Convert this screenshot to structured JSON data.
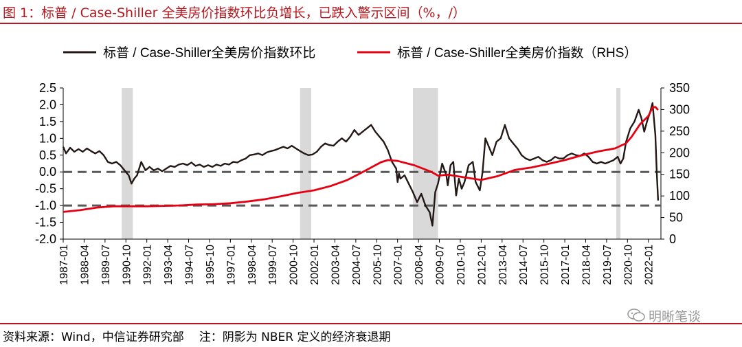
{
  "title": "图 1：标普 / Case-Shiller 全美房价指数环比负增长，已跌入警示区间（%，/）",
  "source": "资料来源：Wind，中信证券研究部",
  "note": "注：阴影为 NBER 定义的经济衰退期",
  "watermark": "明晰笔谈",
  "chart_data": {
    "type": "line",
    "legend_position": "top",
    "legend": [
      {
        "name": "标普 / Case-Shiller全美房价指数环比",
        "color": "#231815"
      },
      {
        "name": "标普 / Case-Shiller全美房价指数（RHS）",
        "color": "#e60012"
      }
    ],
    "x_tick_labels": [
      "1987-01",
      "1988-04",
      "1989-07",
      "1990-10",
      "1992-01",
      "1993-04",
      "1994-07",
      "1995-10",
      "1997-01",
      "1998-04",
      "1999-07",
      "2000-10",
      "2002-01",
      "2003-04",
      "2004-07",
      "2005-10",
      "2007-01",
      "2008-04",
      "2009-07",
      "2010-10",
      "2012-01",
      "2013-04",
      "2014-07",
      "2015-10",
      "2017-01",
      "2018-04",
      "2019-07",
      "2020-10",
      "2022-01"
    ],
    "y_left": {
      "ticks": [
        "2.5",
        "2.0",
        "1.5",
        "1.0",
        "0.5",
        "0.0",
        "-0.5",
        "-1.0",
        "-1.5",
        "-2.0"
      ],
      "range": [
        -2.0,
        2.5
      ]
    },
    "y_right": {
      "label": "RHS",
      "ticks": [
        "350",
        "300",
        "250",
        "200",
        "150",
        "100",
        "50",
        "0"
      ],
      "range": [
        0,
        350
      ]
    },
    "reference_lines": [
      0.0,
      -1.0
    ],
    "recessions": [
      {
        "start": "1990-07",
        "end": "1991-03"
      },
      {
        "start": "2001-03",
        "end": "2001-11"
      },
      {
        "start": "2007-12",
        "end": "2009-06"
      },
      {
        "start": "2020-02",
        "end": "2020-04"
      }
    ],
    "series": [
      {
        "name": "标普 / Case-Shiller全美房价指数环比",
        "axis": "left",
        "points": [
          [
            "1987-01",
            0.75
          ],
          [
            "1987-03",
            0.55
          ],
          [
            "1987-06",
            0.72
          ],
          [
            "1987-09",
            0.6
          ],
          [
            "1987-12",
            0.68
          ],
          [
            "1988-03",
            0.6
          ],
          [
            "1988-06",
            0.7
          ],
          [
            "1988-09",
            0.62
          ],
          [
            "1988-12",
            0.55
          ],
          [
            "1989-03",
            0.62
          ],
          [
            "1989-06",
            0.5
          ],
          [
            "1989-09",
            0.3
          ],
          [
            "1989-12",
            0.25
          ],
          [
            "1990-03",
            0.3
          ],
          [
            "1990-06",
            0.2
          ],
          [
            "1990-09",
            0.05
          ],
          [
            "1990-12",
            -0.1
          ],
          [
            "1991-02",
            -0.35
          ],
          [
            "1991-04",
            -0.2
          ],
          [
            "1991-06",
            -0.1
          ],
          [
            "1991-09",
            0.3
          ],
          [
            "1991-12",
            0.05
          ],
          [
            "1992-03",
            0.15
          ],
          [
            "1992-06",
            0.05
          ],
          [
            "1992-09",
            0.1
          ],
          [
            "1992-12",
            0.02
          ],
          [
            "1993-03",
            0.1
          ],
          [
            "1993-06",
            0.18
          ],
          [
            "1993-09",
            0.15
          ],
          [
            "1993-12",
            0.22
          ],
          [
            "1994-03",
            0.25
          ],
          [
            "1994-06",
            0.2
          ],
          [
            "1994-09",
            0.28
          ],
          [
            "1994-12",
            0.18
          ],
          [
            "1995-03",
            0.22
          ],
          [
            "1995-06",
            0.15
          ],
          [
            "1995-09",
            0.2
          ],
          [
            "1995-12",
            0.15
          ],
          [
            "1996-03",
            0.22
          ],
          [
            "1996-06",
            0.18
          ],
          [
            "1996-09",
            0.25
          ],
          [
            "1996-12",
            0.22
          ],
          [
            "1997-03",
            0.3
          ],
          [
            "1997-06",
            0.28
          ],
          [
            "1997-09",
            0.35
          ],
          [
            "1997-12",
            0.4
          ],
          [
            "1998-03",
            0.5
          ],
          [
            "1998-06",
            0.52
          ],
          [
            "1998-09",
            0.55
          ],
          [
            "1998-12",
            0.5
          ],
          [
            "1999-03",
            0.58
          ],
          [
            "1999-06",
            0.62
          ],
          [
            "1999-09",
            0.65
          ],
          [
            "1999-12",
            0.7
          ],
          [
            "2000-03",
            0.75
          ],
          [
            "2000-06",
            0.7
          ],
          [
            "2000-09",
            0.78
          ],
          [
            "2000-12",
            0.7
          ],
          [
            "2001-03",
            0.62
          ],
          [
            "2001-06",
            0.55
          ],
          [
            "2001-09",
            0.5
          ],
          [
            "2001-12",
            0.52
          ],
          [
            "2002-03",
            0.6
          ],
          [
            "2002-06",
            0.75
          ],
          [
            "2002-09",
            0.85
          ],
          [
            "2002-12",
            0.8
          ],
          [
            "2003-03",
            0.78
          ],
          [
            "2003-06",
            0.9
          ],
          [
            "2003-09",
            1.0
          ],
          [
            "2003-12",
            0.9
          ],
          [
            "2004-03",
            1.05
          ],
          [
            "2004-06",
            1.25
          ],
          [
            "2004-09",
            1.1
          ],
          [
            "2004-12",
            1.2
          ],
          [
            "2005-03",
            1.3
          ],
          [
            "2005-06",
            1.4
          ],
          [
            "2005-09",
            1.2
          ],
          [
            "2005-12",
            1.05
          ],
          [
            "2006-03",
            0.9
          ],
          [
            "2006-06",
            0.65
          ],
          [
            "2006-09",
            0.3
          ],
          [
            "2006-12",
            0.1
          ],
          [
            "2007-01",
            -0.3
          ],
          [
            "2007-02",
            -0.05
          ],
          [
            "2007-03",
            -0.2
          ],
          [
            "2007-06",
            -0.1
          ],
          [
            "2007-09",
            -0.35
          ],
          [
            "2007-12",
            -0.6
          ],
          [
            "2008-03",
            -0.9
          ],
          [
            "2008-06",
            -0.65
          ],
          [
            "2008-09",
            -1.0
          ],
          [
            "2008-12",
            -1.2
          ],
          [
            "2009-02",
            -1.6
          ],
          [
            "2009-04",
            -0.6
          ],
          [
            "2009-06",
            -0.35
          ],
          [
            "2009-09",
            0.25
          ],
          [
            "2009-12",
            -0.1
          ],
          [
            "2010-01",
            -0.4
          ],
          [
            "2010-03",
            0.2
          ],
          [
            "2010-05",
            0.3
          ],
          [
            "2010-07",
            -0.7
          ],
          [
            "2010-09",
            -0.2
          ],
          [
            "2010-11",
            -0.5
          ],
          [
            "2011-01",
            -0.3
          ],
          [
            "2011-04",
            0.2
          ],
          [
            "2011-07",
            0.3
          ],
          [
            "2011-09",
            -0.3
          ],
          [
            "2011-12",
            -0.55
          ],
          [
            "2012-02",
            0.0
          ],
          [
            "2012-04",
            1.0
          ],
          [
            "2012-06",
            0.8
          ],
          [
            "2012-09",
            0.5
          ],
          [
            "2012-12",
            0.9
          ],
          [
            "2013-03",
            1.0
          ],
          [
            "2013-06",
            1.4
          ],
          [
            "2013-09",
            1.0
          ],
          [
            "2013-12",
            0.85
          ],
          [
            "2014-03",
            0.7
          ],
          [
            "2014-06",
            0.5
          ],
          [
            "2014-09",
            0.4
          ],
          [
            "2014-12",
            0.35
          ],
          [
            "2015-03",
            0.4
          ],
          [
            "2015-06",
            0.45
          ],
          [
            "2015-09",
            0.35
          ],
          [
            "2015-12",
            0.3
          ],
          [
            "2016-03",
            0.35
          ],
          [
            "2016-06",
            0.45
          ],
          [
            "2016-09",
            0.4
          ],
          [
            "2016-12",
            0.4
          ],
          [
            "2017-03",
            0.5
          ],
          [
            "2017-06",
            0.55
          ],
          [
            "2017-09",
            0.5
          ],
          [
            "2017-12",
            0.48
          ],
          [
            "2018-03",
            0.55
          ],
          [
            "2018-06",
            0.45
          ],
          [
            "2018-09",
            0.3
          ],
          [
            "2018-12",
            0.25
          ],
          [
            "2019-03",
            0.3
          ],
          [
            "2019-06",
            0.25
          ],
          [
            "2019-09",
            0.3
          ],
          [
            "2019-12",
            0.35
          ],
          [
            "2020-03",
            0.45
          ],
          [
            "2020-05",
            0.25
          ],
          [
            "2020-07",
            0.4
          ],
          [
            "2020-09",
            0.9
          ],
          [
            "2020-12",
            1.3
          ],
          [
            "2021-03",
            1.5
          ],
          [
            "2021-06",
            1.85
          ],
          [
            "2021-08",
            1.6
          ],
          [
            "2021-10",
            1.2
          ],
          [
            "2021-12",
            1.5
          ],
          [
            "2022-02",
            1.75
          ],
          [
            "2022-04",
            2.05
          ],
          [
            "2022-06",
            1.1
          ],
          [
            "2022-07",
            0.0
          ],
          [
            "2022-08",
            -0.85
          ]
        ]
      },
      {
        "name": "标普 / Case-Shiller全美房价指数（RHS）",
        "axis": "right",
        "points": [
          [
            "1987-01",
            63
          ],
          [
            "1988-01",
            67
          ],
          [
            "1989-01",
            73
          ],
          [
            "1990-01",
            76
          ],
          [
            "1991-01",
            76
          ],
          [
            "1992-01",
            76
          ],
          [
            "1993-01",
            77
          ],
          [
            "1994-01",
            78
          ],
          [
            "1995-01",
            80
          ],
          [
            "1996-01",
            81
          ],
          [
            "1997-01",
            83
          ],
          [
            "1998-01",
            87
          ],
          [
            "1999-01",
            92
          ],
          [
            "2000-01",
            99
          ],
          [
            "2001-01",
            107
          ],
          [
            "2002-01",
            113
          ],
          [
            "2003-01",
            123
          ],
          [
            "2004-01",
            137
          ],
          [
            "2005-01",
            157
          ],
          [
            "2006-01",
            178
          ],
          [
            "2006-06",
            183
          ],
          [
            "2007-01",
            181
          ],
          [
            "2008-01",
            171
          ],
          [
            "2009-01",
            156
          ],
          [
            "2009-06",
            147
          ],
          [
            "2010-01",
            149
          ],
          [
            "2011-01",
            143
          ],
          [
            "2012-01",
            137
          ],
          [
            "2013-01",
            146
          ],
          [
            "2014-01",
            160
          ],
          [
            "2015-01",
            166
          ],
          [
            "2016-01",
            174
          ],
          [
            "2017-01",
            183
          ],
          [
            "2018-01",
            194
          ],
          [
            "2019-01",
            203
          ],
          [
            "2020-01",
            210
          ],
          [
            "2020-09",
            222
          ],
          [
            "2021-01",
            237
          ],
          [
            "2021-07",
            266
          ],
          [
            "2022-01",
            285
          ],
          [
            "2022-04",
            305
          ],
          [
            "2022-06",
            306
          ],
          [
            "2022-08",
            299
          ]
        ]
      }
    ]
  }
}
